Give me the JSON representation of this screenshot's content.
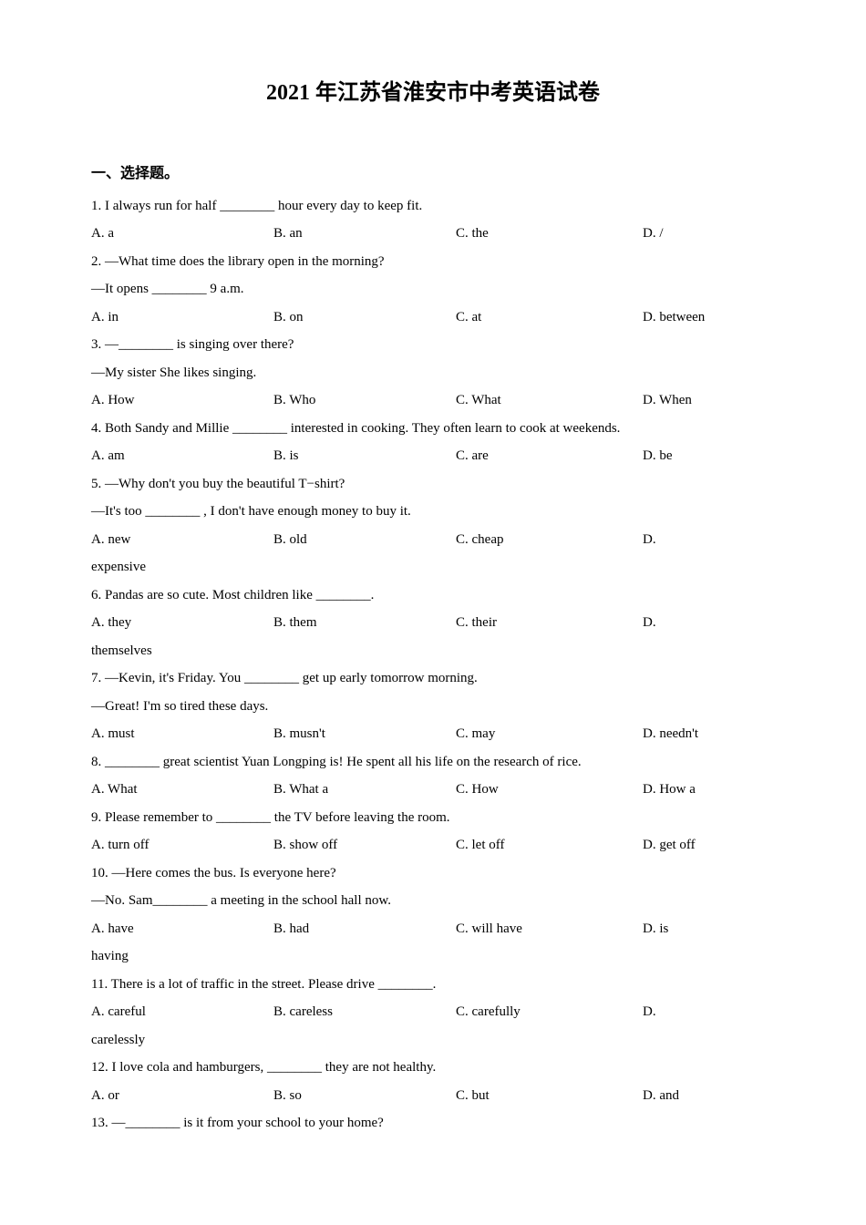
{
  "title": "2021 年江苏省淮安市中考英语试卷",
  "section_header": "一、选择题。",
  "questions": [
    {
      "num": "1",
      "text": "1. I always run for half ________ hour every day to keep fit.",
      "options": {
        "a": "A. a",
        "b": "B. an",
        "c": "C. the",
        "d": "D. /"
      }
    },
    {
      "num": "2",
      "text": "2. —What time does the library open in the morning?",
      "text2": "—It opens ________ 9 a.m.",
      "options": {
        "a": "A. in",
        "b": "B. on",
        "c": "C. at",
        "d": "D. between"
      }
    },
    {
      "num": "3",
      "text": "3. —________ is singing over there?",
      "text2": "—My sister  She likes singing.",
      "options": {
        "a": "A. How",
        "b": "B. Who",
        "c": "C. What",
        "d": "D. When"
      }
    },
    {
      "num": "4",
      "text": "4. Both Sandy and Millie ________ interested in cooking. They often learn to cook at weekends.",
      "options": {
        "a": "A. am",
        "b": "B. is",
        "c": "C. are",
        "d": "D. be"
      }
    },
    {
      "num": "5",
      "text": "5. —Why don't you buy the beautiful T−shirt?",
      "text2": "—It's too ________ , I don't have enough money to buy it.",
      "options": {
        "a": "A. new",
        "b": "B. old",
        "c": "C. cheap",
        "d": "D."
      },
      "wrap": "expensive"
    },
    {
      "num": "6",
      "text": "6. Pandas are so cute. Most children like ________.",
      "options": {
        "a": "A. they",
        "b": "B. them",
        "c": "C. their",
        "d": "D."
      },
      "wrap": "themselves"
    },
    {
      "num": "7",
      "text": "7. —Kevin, it's Friday. You ________ get up early tomorrow morning.",
      "text2": "—Great! I'm so tired these days.",
      "options": {
        "a": "A. must",
        "b": "B. musn't",
        "c": "C. may",
        "d": "D. needn't"
      }
    },
    {
      "num": "8",
      "text": "8. ________ great scientist Yuan Longping is! He spent all his life on the research of rice.",
      "options": {
        "a": "A. What",
        "b": "B. What a",
        "c": "C. How",
        "d": "D. How a"
      }
    },
    {
      "num": "9",
      "text": "9. Please remember to ________ the TV before leaving the room.",
      "options": {
        "a": "A. turn off",
        "b": "B. show off",
        "c": "C. let off",
        "d": "D. get off"
      }
    },
    {
      "num": "10",
      "text": "10. —Here comes the bus. Is everyone here?",
      "text2": "—No. Sam________ a meeting in the school hall now.",
      "options": {
        "a": "A. have",
        "b": "B. had",
        "c": "C. will have",
        "d": "D. is"
      },
      "wrap": "having"
    },
    {
      "num": "11",
      "text": "11. There is a lot of traffic in the street. Please drive ________.",
      "options": {
        "a": "A. careful",
        "b": "B. careless",
        "c": "C. carefully",
        "d": "D."
      },
      "wrap": "carelessly"
    },
    {
      "num": "12",
      "text": "12. I love cola and hamburgers, ________ they are not healthy.",
      "options": {
        "a": "A. or",
        "b": "B. so",
        "c": "C. but",
        "d": "D. and"
      }
    },
    {
      "num": "13",
      "text": "13. —________ is it from your school to your home?"
    }
  ]
}
